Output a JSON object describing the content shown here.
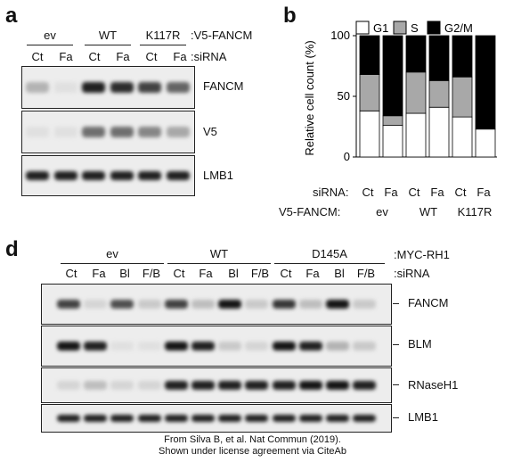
{
  "panel_a": {
    "letter": "a",
    "group_header": ":V5-FANCM",
    "sirna_header": ":siRNA",
    "groups": [
      "ev",
      "WT",
      "K117R"
    ],
    "lanes": [
      "Ct",
      "Fa",
      "Ct",
      "Fa",
      "Ct",
      "Fa"
    ],
    "blots": [
      {
        "label": "FANCM",
        "intensities": [
          0.25,
          0.05,
          0.9,
          0.85,
          0.75,
          0.6
        ]
      },
      {
        "label": "V5",
        "intensities": [
          0.05,
          0.05,
          0.55,
          0.55,
          0.45,
          0.3
        ]
      },
      {
        "label": "LMB1",
        "intensities": [
          0.9,
          0.9,
          0.9,
          0.9,
          0.9,
          0.9
        ]
      }
    ]
  },
  "panel_b": {
    "letter": "b",
    "row_labels": [
      "siRNA:",
      "V5-FANCM:"
    ],
    "groups": [
      "ev",
      "WT",
      "K117R"
    ]
  },
  "chart_data": {
    "type": "bar",
    "stacked": true,
    "categories": [
      "Ct",
      "Fa",
      "Ct",
      "Fa",
      "Ct",
      "Fa"
    ],
    "series": [
      {
        "name": "G1",
        "values": [
          38,
          26,
          36,
          41,
          33,
          23
        ],
        "color": "#ffffff"
      },
      {
        "name": "S",
        "values": [
          30,
          8,
          34,
          22,
          33,
          0
        ],
        "color": "#a8a8a8"
      },
      {
        "name": "G2/M",
        "values": [
          32,
          66,
          30,
          37,
          34,
          77
        ],
        "color": "#000000"
      }
    ],
    "ylabel": "Relative cell count (%)",
    "ylim": [
      0,
      100
    ],
    "yticks": [
      0,
      50,
      100
    ],
    "legend": "top"
  },
  "panel_d": {
    "letter": "d",
    "group_header": ":MYC-RH1",
    "sirna_header": ":siRNA",
    "groups": [
      "ev",
      "WT",
      "D145A"
    ],
    "lanes": [
      "Ct",
      "Fa",
      "Bl",
      "F/B",
      "Ct",
      "Fa",
      "Bl",
      "F/B",
      "Ct",
      "Fa",
      "Bl",
      "F/B"
    ],
    "blots": [
      {
        "label": "FANCM",
        "intensities": [
          0.75,
          0.1,
          0.7,
          0.15,
          0.75,
          0.2,
          0.95,
          0.15,
          0.8,
          0.2,
          0.95,
          0.15
        ]
      },
      {
        "label": "BLM",
        "intensities": [
          0.95,
          0.9,
          0.05,
          0.05,
          0.95,
          0.9,
          0.15,
          0.1,
          0.95,
          0.9,
          0.25,
          0.15
        ]
      },
      {
        "label": "RNaseH1",
        "intensities": [
          0.1,
          0.2,
          0.1,
          0.1,
          0.9,
          0.9,
          0.9,
          0.9,
          0.9,
          0.95,
          0.95,
          0.9
        ]
      },
      {
        "label": "LMB1",
        "intensities": [
          0.9,
          0.9,
          0.9,
          0.9,
          0.9,
          0.9,
          0.9,
          0.9,
          0.9,
          0.9,
          0.9,
          0.9
        ]
      }
    ]
  },
  "footer": {
    "line1": "From Silva B, et al. Nat Commun (2019).",
    "line2": "Shown under license agreement via CiteAb"
  }
}
